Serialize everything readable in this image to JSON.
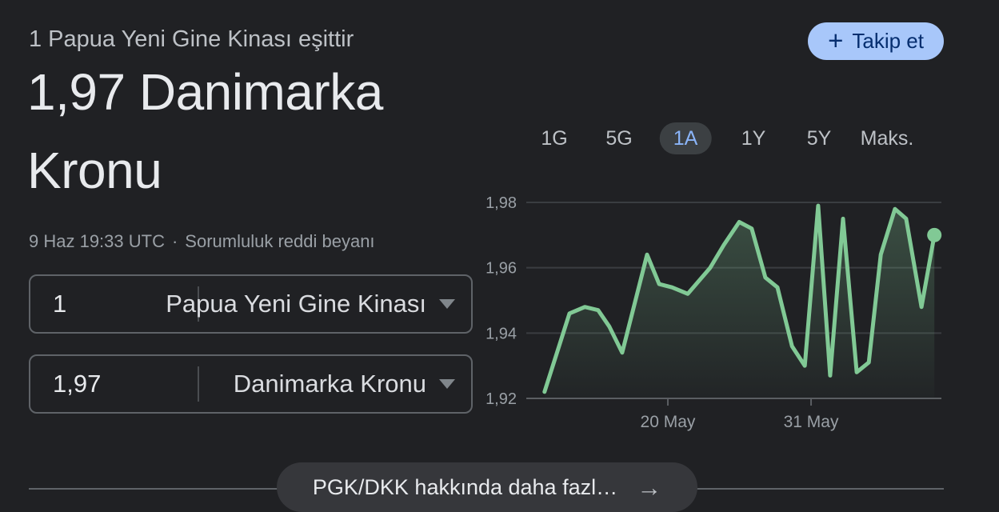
{
  "colors": {
    "background": "#202124",
    "text_primary": "#e8eaed",
    "text_secondary": "#9aa0a6",
    "subtitle_gray": "#bdc1c6",
    "accent_blue": "#8ab4f8",
    "follow_pill_bg": "#a8c7fa",
    "follow_pill_text": "#062e6f",
    "line_green": "#81c995",
    "row_border": "#5f6368",
    "chip_bg": "#3c4043"
  },
  "header": {
    "equals_line": "1 Papua Yeni Gine Kinası eşittir",
    "result": "1,97 Danimarka Kronu",
    "timestamp": "9 Haz 19:33 UTC",
    "dot_separator": "·",
    "disclaimer_link": "Sorumluluk reddi beyanı",
    "follow_button": {
      "icon": "+",
      "label": "Takip et"
    }
  },
  "converter": {
    "rows": [
      {
        "amount": "1",
        "currency": "Papua Yeni Gine Kinası"
      },
      {
        "amount": "1,97",
        "currency": "Danimarka Kronu"
      }
    ]
  },
  "range_tabs": {
    "options": [
      "1G",
      "5G",
      "1A",
      "1Y",
      "5Y",
      "Maks."
    ],
    "active": "1A"
  },
  "chart_data": {
    "type": "line",
    "area_fill": true,
    "title": "",
    "xlabel": "",
    "ylabel": "",
    "ylim": [
      1.92,
      1.98
    ],
    "grid": true,
    "line_color": "#81c995",
    "grid_color": "#3a3d41",
    "axis_color": "#5b5e62",
    "label_color": "#9aa0a6",
    "y_ticks": [
      {
        "value": 1.92,
        "label": "1,92"
      },
      {
        "value": 1.94,
        "label": "1,94"
      },
      {
        "value": 1.96,
        "label": "1,96"
      },
      {
        "value": 1.98,
        "label": "1,98"
      }
    ],
    "x_ticks": [
      {
        "frac": 0.341,
        "label": "20 May"
      },
      {
        "frac": 0.686,
        "label": "31 May"
      }
    ],
    "points": [
      {
        "frac": 0.044,
        "value": 1.922
      },
      {
        "frac": 0.104,
        "value": 1.946
      },
      {
        "frac": 0.141,
        "value": 1.948
      },
      {
        "frac": 0.173,
        "value": 1.947
      },
      {
        "frac": 0.2,
        "value": 1.942
      },
      {
        "frac": 0.231,
        "value": 1.934
      },
      {
        "frac": 0.291,
        "value": 1.964
      },
      {
        "frac": 0.32,
        "value": 1.955
      },
      {
        "frac": 0.351,
        "value": 1.954
      },
      {
        "frac": 0.389,
        "value": 1.952
      },
      {
        "frac": 0.443,
        "value": 1.96
      },
      {
        "frac": 0.476,
        "value": 1.967
      },
      {
        "frac": 0.513,
        "value": 1.974
      },
      {
        "frac": 0.543,
        "value": 1.972
      },
      {
        "frac": 0.576,
        "value": 1.957
      },
      {
        "frac": 0.605,
        "value": 1.954
      },
      {
        "frac": 0.64,
        "value": 1.936
      },
      {
        "frac": 0.671,
        "value": 1.93
      },
      {
        "frac": 0.703,
        "value": 1.979
      },
      {
        "frac": 0.732,
        "value": 1.927
      },
      {
        "frac": 0.763,
        "value": 1.975
      },
      {
        "frac": 0.796,
        "value": 1.928
      },
      {
        "frac": 0.825,
        "value": 1.931
      },
      {
        "frac": 0.854,
        "value": 1.964
      },
      {
        "frac": 0.888,
        "value": 1.978
      },
      {
        "frac": 0.915,
        "value": 1.975
      },
      {
        "frac": 0.952,
        "value": 1.948
      },
      {
        "frac": 0.983,
        "value": 1.97
      }
    ],
    "end_marker_value": 1.97
  },
  "footer": {
    "more_link": "PGK/DKK hakkında daha fazl…",
    "arrow": "→"
  }
}
